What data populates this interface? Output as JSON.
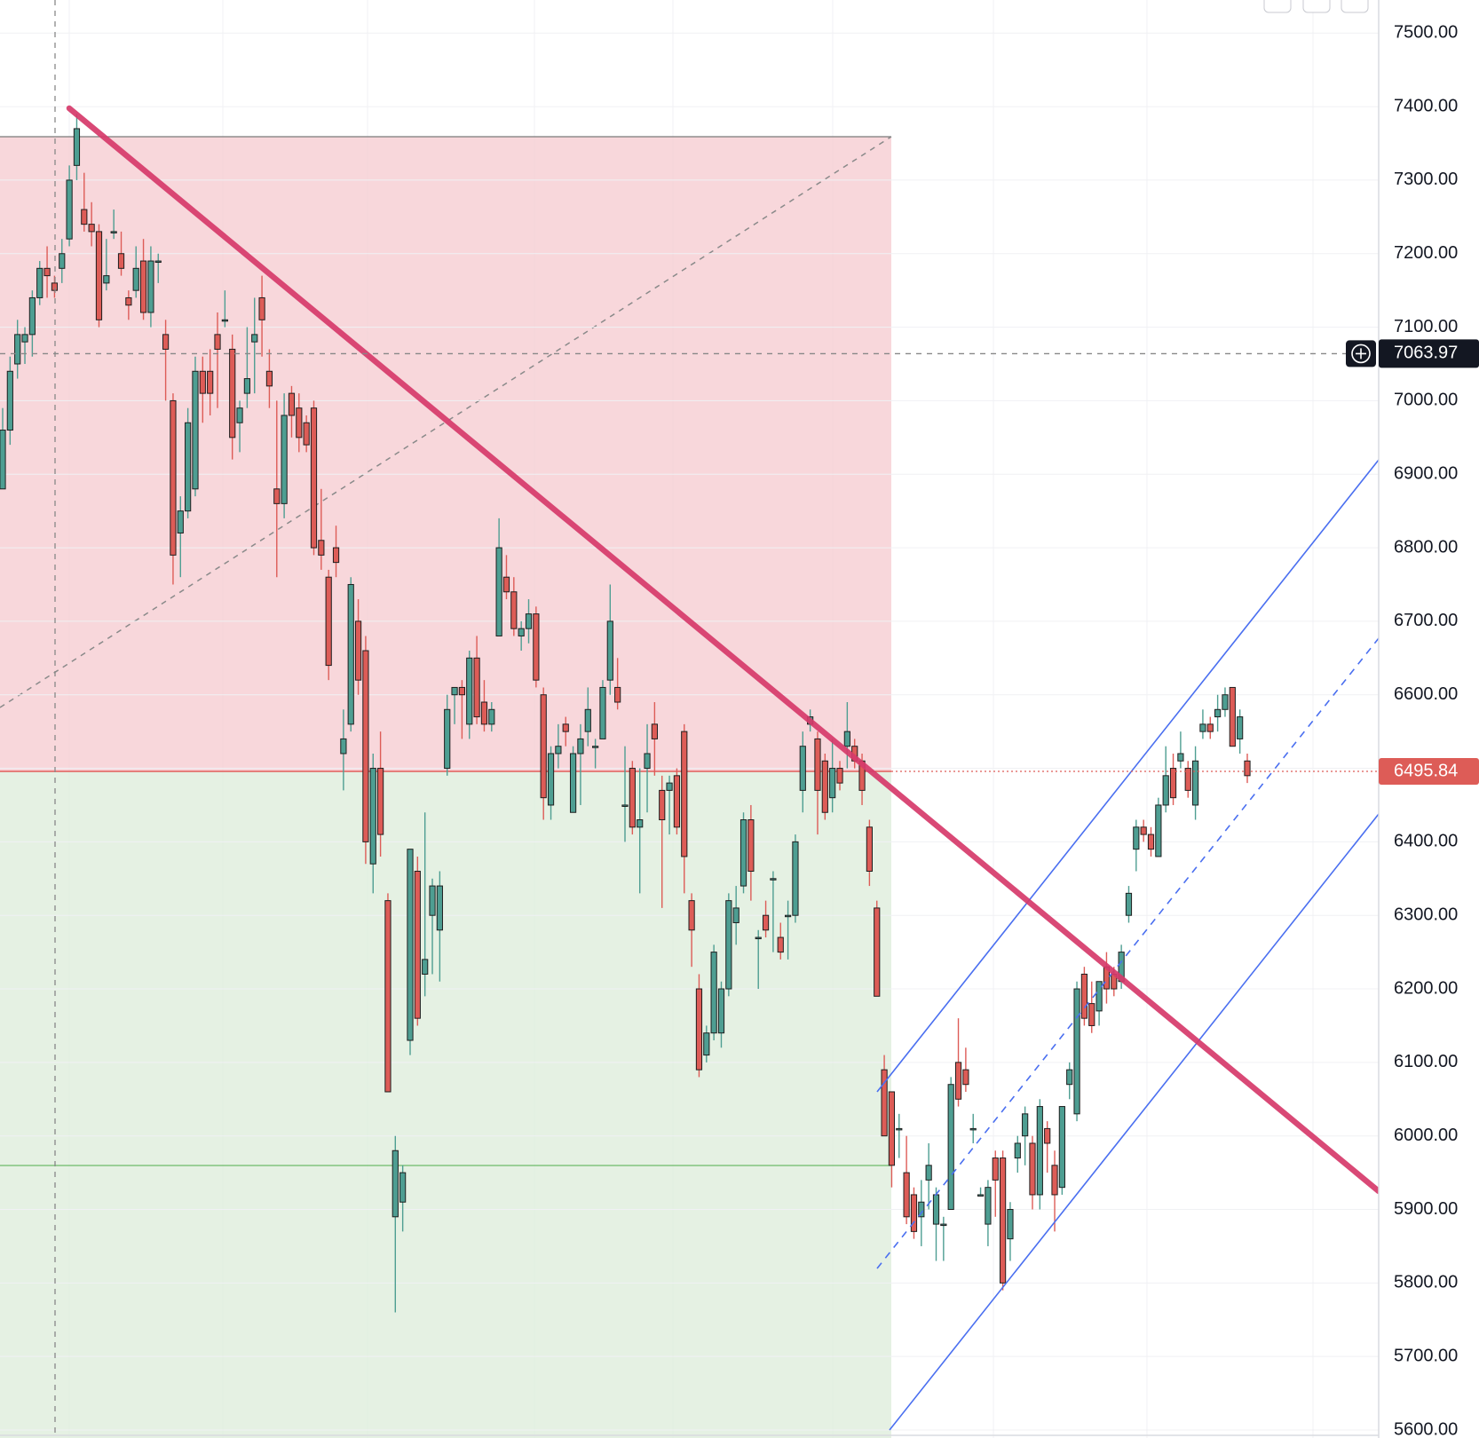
{
  "chart_data": {
    "type": "candlestick",
    "up_color": "#4e9e92",
    "down_color": "#dd5c57",
    "ylim": [
      5600,
      7545
    ],
    "yticks": [
      {
        "value": 5600,
        "label": "5600.00"
      },
      {
        "value": 5700,
        "label": "5700.00"
      },
      {
        "value": 5800,
        "label": "5800.00"
      },
      {
        "value": 5900,
        "label": "5900.00"
      },
      {
        "value": 6000,
        "label": "6000.00"
      },
      {
        "value": 6100,
        "label": "6100.00"
      },
      {
        "value": 6200,
        "label": "6200.00"
      },
      {
        "value": 6300,
        "label": "6300.00"
      },
      {
        "value": 6400,
        "label": "6400.00"
      },
      {
        "value": 6500,
        "label": "6500.00"
      },
      {
        "value": 6600,
        "label": "6600.00"
      },
      {
        "value": 6700,
        "label": "6700.00"
      },
      {
        "value": 6800,
        "label": "6800.00"
      },
      {
        "value": 6900,
        "label": "6900.00"
      },
      {
        "value": 7000,
        "label": "7000.00"
      },
      {
        "value": 7100,
        "label": "7100.00"
      },
      {
        "value": 7200,
        "label": "7200.00"
      },
      {
        "value": 7300,
        "label": "7300.00"
      },
      {
        "value": 7400,
        "label": "7400.00"
      },
      {
        "value": 7500,
        "label": "7500.00"
      }
    ],
    "grid": true,
    "crosshair_price": 7063.97,
    "last_price": 6495.84,
    "ohlc": [
      [
        6880,
        6990,
        6880,
        6960
      ],
      [
        6960,
        7060,
        6940,
        7040
      ],
      [
        7050,
        7110,
        7030,
        7090
      ],
      [
        7080,
        7100,
        7050,
        7090
      ],
      [
        7090,
        7150,
        7060,
        7140
      ],
      [
        7140,
        7190,
        7130,
        7180
      ],
      [
        7180,
        7210,
        7140,
        7170
      ],
      [
        7160,
        7170,
        7140,
        7150
      ],
      [
        7180,
        7220,
        7160,
        7200
      ],
      [
        7220,
        7320,
        7210,
        7300
      ],
      [
        7320,
        7390,
        7300,
        7370
      ],
      [
        7260,
        7310,
        7230,
        7240
      ],
      [
        7240,
        7270,
        7210,
        7230
      ],
      [
        7230,
        7240,
        7100,
        7110
      ],
      [
        7160,
        7220,
        7150,
        7170
      ],
      [
        7230,
        7260,
        7220,
        7230
      ],
      [
        7200,
        7230,
        7170,
        7180
      ],
      [
        7140,
        7150,
        7110,
        7130
      ],
      [
        7150,
        7210,
        7140,
        7180
      ],
      [
        7190,
        7220,
        7110,
        7120
      ],
      [
        7120,
        7210,
        7100,
        7190
      ],
      [
        7190,
        7200,
        7160,
        7190
      ],
      [
        7090,
        7110,
        7000,
        7070
      ],
      [
        7000,
        7010,
        6750,
        6790
      ],
      [
        6820,
        6870,
        6760,
        6850
      ],
      [
        6850,
        6990,
        6840,
        6970
      ],
      [
        6880,
        7060,
        6870,
        7040
      ],
      [
        7040,
        7060,
        6970,
        7010
      ],
      [
        7040,
        7070,
        6980,
        7010
      ],
      [
        7090,
        7120,
        6990,
        7070
      ],
      [
        7110,
        7150,
        7100,
        7110
      ],
      [
        7070,
        7090,
        6920,
        6950
      ],
      [
        6970,
        7000,
        6930,
        6990
      ],
      [
        7010,
        7100,
        6990,
        7030
      ],
      [
        7080,
        7140,
        7010,
        7090
      ],
      [
        7140,
        7170,
        7060,
        7110
      ],
      [
        7040,
        7070,
        6990,
        7020
      ],
      [
        6880,
        7000,
        6760,
        6860
      ],
      [
        6860,
        7010,
        6840,
        6980
      ],
      [
        7010,
        7020,
        6950,
        6980
      ],
      [
        6990,
        7010,
        6930,
        6950
      ],
      [
        6970,
        6980,
        6930,
        6940
      ],
      [
        6990,
        7000,
        6790,
        6800
      ],
      [
        6810,
        6880,
        6770,
        6790
      ],
      [
        6760,
        6770,
        6620,
        6640
      ],
      [
        6800,
        6830,
        6760,
        6780
      ],
      [
        6520,
        6580,
        6470,
        6540
      ],
      [
        6560,
        6760,
        6550,
        6750
      ],
      [
        6700,
        6730,
        6600,
        6620
      ],
      [
        6660,
        6680,
        6370,
        6400
      ],
      [
        6370,
        6520,
        6330,
        6500
      ],
      [
        6500,
        6550,
        6380,
        6410
      ],
      [
        6320,
        6330,
        6060,
        6060
      ],
      [
        5890,
        6000,
        5760,
        5980
      ],
      [
        5910,
        5960,
        5870,
        5950
      ],
      [
        6130,
        6390,
        6110,
        6390
      ],
      [
        6360,
        6380,
        6150,
        6160
      ],
      [
        6220,
        6440,
        6190,
        6240
      ],
      [
        6300,
        6350,
        6220,
        6340
      ],
      [
        6280,
        6360,
        6210,
        6340
      ],
      [
        6500,
        6600,
        6490,
        6580
      ],
      [
        6600,
        6610,
        6560,
        6610
      ],
      [
        6610,
        6620,
        6540,
        6600
      ],
      [
        6560,
        6660,
        6540,
        6650
      ],
      [
        6650,
        6680,
        6560,
        6570
      ],
      [
        6590,
        6620,
        6550,
        6560
      ],
      [
        6560,
        6590,
        6550,
        6580
      ],
      [
        6680,
        6840,
        6680,
        6800
      ],
      [
        6760,
        6790,
        6730,
        6740
      ],
      [
        6740,
        6760,
        6680,
        6690
      ],
      [
        6680,
        6700,
        6660,
        6690
      ],
      [
        6690,
        6730,
        6670,
        6710
      ],
      [
        6710,
        6720,
        6610,
        6620
      ],
      [
        6600,
        6610,
        6430,
        6460
      ],
      [
        6450,
        6530,
        6430,
        6520
      ],
      [
        6520,
        6560,
        6500,
        6530
      ],
      [
        6560,
        6570,
        6530,
        6550
      ],
      [
        6440,
        6530,
        6440,
        6520
      ],
      [
        6520,
        6560,
        6450,
        6540
      ],
      [
        6550,
        6610,
        6530,
        6580
      ],
      [
        6530,
        6540,
        6500,
        6530
      ],
      [
        6540,
        6620,
        6540,
        6610
      ],
      [
        6620,
        6750,
        6600,
        6700
      ],
      [
        6610,
        6650,
        6580,
        6590
      ],
      [
        6450,
        6530,
        6400,
        6450
      ],
      [
        6500,
        6510,
        6410,
        6420
      ],
      [
        6420,
        6500,
        6330,
        6430
      ],
      [
        6500,
        6560,
        6440,
        6520
      ],
      [
        6560,
        6590,
        6490,
        6540
      ],
      [
        6470,
        6490,
        6310,
        6430
      ],
      [
        6470,
        6490,
        6410,
        6480
      ],
      [
        6490,
        6500,
        6410,
        6420
      ],
      [
        6550,
        6560,
        6330,
        6380
      ],
      [
        6320,
        6330,
        6230,
        6280
      ],
      [
        6200,
        6220,
        6080,
        6090
      ],
      [
        6110,
        6150,
        6100,
        6140
      ],
      [
        6140,
        6260,
        6130,
        6250
      ],
      [
        6140,
        6210,
        6120,
        6200
      ],
      [
        6200,
        6330,
        6190,
        6320
      ],
      [
        6290,
        6340,
        6260,
        6310
      ],
      [
        6340,
        6440,
        6330,
        6430
      ],
      [
        6430,
        6450,
        6320,
        6360
      ],
      [
        6270,
        6280,
        6200,
        6270
      ],
      [
        6300,
        6320,
        6270,
        6280
      ],
      [
        6350,
        6360,
        6250,
        6350
      ],
      [
        6270,
        6290,
        6240,
        6250
      ],
      [
        6300,
        6320,
        6240,
        6300
      ],
      [
        6300,
        6410,
        6290,
        6400
      ],
      [
        6470,
        6550,
        6440,
        6530
      ],
      [
        6560,
        6580,
        6550,
        6570
      ],
      [
        6540,
        6550,
        6410,
        6470
      ],
      [
        6510,
        6520,
        6430,
        6440
      ],
      [
        6460,
        6540,
        6440,
        6500
      ],
      [
        6500,
        6510,
        6470,
        6480
      ],
      [
        6530,
        6590,
        6500,
        6550
      ],
      [
        6530,
        6540,
        6500,
        6510
      ],
      [
        6510,
        6520,
        6450,
        6470
      ],
      [
        6420,
        6430,
        6340,
        6360
      ],
      [
        6310,
        6320,
        6190,
        6190
      ],
      [
        6090,
        6110,
        6000,
        6000
      ],
      [
        6060,
        6060,
        5930,
        5960
      ],
      [
        6010,
        6030,
        5970,
        6010
      ],
      [
        5950,
        6000,
        5880,
        5890
      ],
      [
        5920,
        5930,
        5860,
        5870
      ],
      [
        5890,
        5940,
        5850,
        5910
      ],
      [
        5940,
        5990,
        5900,
        5960
      ],
      [
        5880,
        5930,
        5830,
        5920
      ],
      [
        5880,
        5890,
        5830,
        5880
      ],
      [
        5900,
        6080,
        5900,
        6070
      ],
      [
        6100,
        6160,
        6040,
        6050
      ],
      [
        6090,
        6120,
        6060,
        6070
      ],
      [
        6010,
        6030,
        5990,
        6010
      ],
      [
        5920,
        5930,
        5920,
        5920
      ],
      [
        5880,
        5940,
        5850,
        5930
      ],
      [
        5970,
        5980,
        5890,
        5940
      ],
      [
        5970,
        5980,
        5790,
        5800
      ],
      [
        5860,
        5910,
        5830,
        5900
      ],
      [
        5970,
        6000,
        5950,
        5990
      ],
      [
        6000,
        6040,
        5960,
        6030
      ],
      [
        5990,
        6000,
        5900,
        5920
      ],
      [
        5920,
        6050,
        5900,
        6040
      ],
      [
        6010,
        6020,
        5950,
        5990
      ],
      [
        5960,
        5980,
        5870,
        5920
      ],
      [
        5930,
        6040,
        5920,
        6040
      ],
      [
        6070,
        6100,
        6050,
        6090
      ],
      [
        6030,
        6210,
        6020,
        6200
      ],
      [
        6220,
        6230,
        6150,
        6160
      ],
      [
        6180,
        6210,
        6140,
        6150
      ],
      [
        6170,
        6210,
        6150,
        6210
      ],
      [
        6230,
        6250,
        6180,
        6200
      ],
      [
        6220,
        6230,
        6190,
        6200
      ],
      [
        6210,
        6260,
        6200,
        6250
      ],
      [
        6300,
        6340,
        6290,
        6330
      ],
      [
        6390,
        6430,
        6360,
        6420
      ],
      [
        6420,
        6430,
        6400,
        6410
      ],
      [
        6410,
        6420,
        6380,
        6390
      ],
      [
        6380,
        6460,
        6380,
        6450
      ],
      [
        6450,
        6530,
        6440,
        6490
      ],
      [
        6500,
        6520,
        6450,
        6460
      ],
      [
        6510,
        6550,
        6500,
        6520
      ],
      [
        6500,
        6510,
        6460,
        6470
      ],
      [
        6450,
        6530,
        6430,
        6510
      ],
      [
        6550,
        6580,
        6540,
        6560
      ],
      [
        6560,
        6570,
        6540,
        6550
      ],
      [
        6570,
        6600,
        6550,
        6580
      ],
      [
        6580,
        6610,
        6570,
        6600
      ],
      [
        6610,
        6610,
        6530,
        6530
      ],
      [
        6540,
        6580,
        6520,
        6570
      ],
      [
        6510,
        6520,
        6480,
        6490
      ]
    ]
  }
}
